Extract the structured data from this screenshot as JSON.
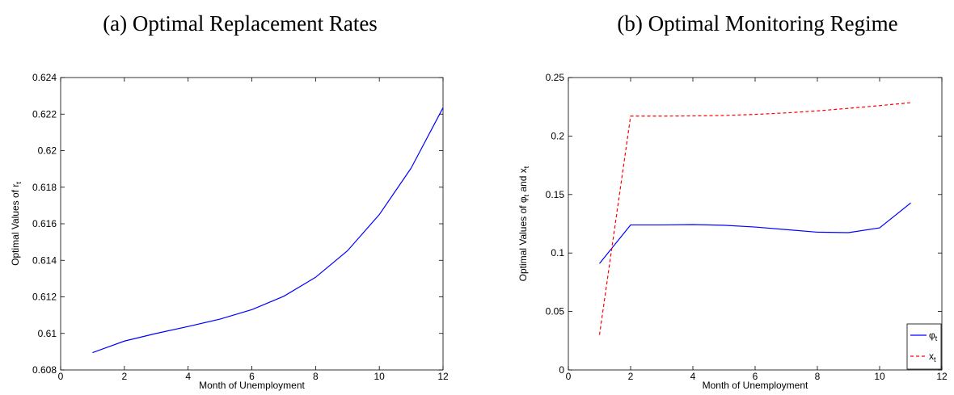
{
  "chart_data": [
    {
      "type": "line",
      "title": "(a) Optimal Replacement Rates",
      "xlabel": "Month of Unemployment",
      "ylabel": [
        "Optimal Values of r",
        "t"
      ],
      "x": [
        1,
        2,
        3,
        4,
        5,
        6,
        7,
        8,
        9,
        10,
        11,
        12
      ],
      "series": [
        {
          "color": "#0000ff",
          "line_style": "solid",
          "values": [
            0.60895,
            0.60958,
            0.61,
            0.61038,
            0.61078,
            0.6113,
            0.61203,
            0.61307,
            0.61452,
            0.6165,
            0.61905,
            0.62235
          ]
        }
      ],
      "xlim": [
        0,
        12
      ],
      "xticks": [
        0,
        2,
        4,
        6,
        8,
        10,
        12
      ],
      "ylim": [
        0.608,
        0.624
      ],
      "yticks": [
        0.608,
        0.61,
        0.612,
        0.614,
        0.616,
        0.618,
        0.62,
        0.622,
        0.624
      ],
      "grid": false
    },
    {
      "type": "line",
      "title": "(b) Optimal Monitoring Regime",
      "xlabel": "Month of Unemployment",
      "ylabel": [
        "Optimal Values of φ",
        "t",
        " and x",
        "t"
      ],
      "x": [
        1,
        2,
        3,
        4,
        5,
        6,
        7,
        8,
        9,
        10,
        11
      ],
      "series": [
        {
          "name": [
            "φ",
            "t"
          ],
          "color": "#0000ff",
          "line_style": "solid",
          "values": [
            0.091,
            0.124,
            0.124,
            0.1243,
            0.1237,
            0.1222,
            0.12,
            0.1178,
            0.1174,
            0.1215,
            0.1428
          ]
        },
        {
          "name": [
            "x",
            "t"
          ],
          "color": "#ff0000",
          "line_style": "dashed",
          "values": [
            0.03,
            0.217,
            0.217,
            0.2172,
            0.2176,
            0.2185,
            0.2198,
            0.2215,
            0.2237,
            0.226,
            0.2285
          ]
        }
      ],
      "xlim": [
        0,
        12
      ],
      "xticks": [
        0,
        2,
        4,
        6,
        8,
        10,
        12
      ],
      "ylim": [
        0,
        0.25
      ],
      "yticks": [
        0,
        0.05,
        0.1,
        0.15,
        0.2,
        0.25
      ],
      "grid": false,
      "legend": "lower-right"
    }
  ]
}
